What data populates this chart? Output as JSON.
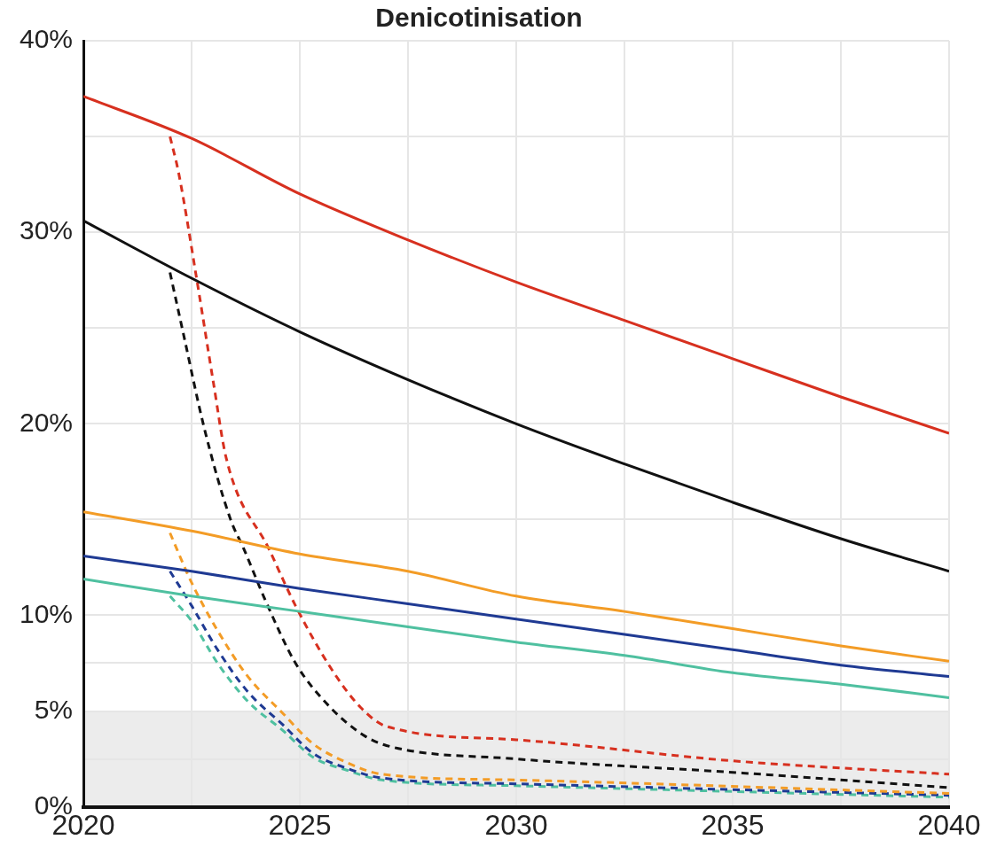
{
  "chart_data": {
    "type": "line",
    "title": "Denicotinisation",
    "xlim": [
      2020,
      2040
    ],
    "xticks": [
      2020,
      {
        "value": 2022.5,
        "label": null
      },
      2025,
      {
        "value": 2027.5,
        "label": null
      },
      2030,
      {
        "value": 2032.5,
        "label": null
      },
      2035,
      {
        "value": 2037.5,
        "label": null
      },
      2040
    ],
    "ylim": [
      0,
      40
    ],
    "yticks": [
      {
        "value": 0,
        "label": "0%"
      },
      {
        "value": 2.5,
        "label": null
      },
      {
        "value": 5,
        "label": "5%"
      },
      {
        "value": 7.5,
        "label": null
      },
      {
        "value": 10,
        "label": "10%"
      },
      {
        "value": 15,
        "label": null
      },
      {
        "value": 20,
        "label": "20%"
      },
      {
        "value": 25,
        "label": null
      },
      {
        "value": 30,
        "label": "30%"
      },
      {
        "value": 35,
        "label": null
      },
      {
        "value": 40,
        "label": "40%"
      }
    ],
    "grid": true,
    "legend": false,
    "marker": "none",
    "bands": [
      {
        "axis": "y",
        "from": 0,
        "to": 5,
        "color": "#ececec"
      }
    ],
    "series": [
      {
        "color": "#d7301f",
        "line_style": "solid",
        "x": [
          2020,
          2022.5,
          2025,
          2027.5,
          2030,
          2032.5,
          2035,
          2037.5,
          2040
        ],
        "values": [
          37.1,
          34.9,
          32.0,
          29.6,
          27.4,
          25.4,
          23.4,
          21.4,
          19.5
        ]
      },
      {
        "color": "#111111",
        "line_style": "solid",
        "x": [
          2020,
          2022.5,
          2025,
          2027.5,
          2030,
          2032.5,
          2035,
          2037.5,
          2040
        ],
        "values": [
          30.6,
          27.6,
          24.8,
          22.3,
          20.0,
          17.9,
          15.9,
          14.0,
          12.3
        ]
      },
      {
        "color": "#f39c26",
        "line_style": "solid",
        "x": [
          2020,
          2022.5,
          2025,
          2027.5,
          2030,
          2032.5,
          2035,
          2037.5,
          2040
        ],
        "values": [
          15.4,
          14.4,
          13.2,
          12.3,
          11.0,
          10.2,
          9.3,
          8.4,
          7.6
        ]
      },
      {
        "color": "#1f3a93",
        "line_style": "solid",
        "x": [
          2020,
          2022.5,
          2025,
          2027.5,
          2030,
          2032.5,
          2035,
          2037.5,
          2040
        ],
        "values": [
          13.1,
          12.3,
          11.4,
          10.6,
          9.8,
          9.0,
          8.2,
          7.4,
          6.8
        ]
      },
      {
        "color": "#4fc0a0",
        "line_style": "solid",
        "x": [
          2020,
          2022.5,
          2025,
          2027.5,
          2030,
          2032.5,
          2035,
          2037.5,
          2040
        ],
        "values": [
          11.9,
          11.0,
          10.2,
          9.4,
          8.6,
          7.9,
          7.0,
          6.4,
          5.7
        ]
      },
      {
        "color": "#d7301f",
        "line_style": "dashed",
        "x": [
          2022,
          2022.2,
          2022.6,
          2023,
          2023.3,
          2024.3,
          2024.9,
          2025.7,
          2026.4,
          2027,
          2030,
          2035,
          2040
        ],
        "values": [
          35.0,
          33.1,
          27.8,
          22.2,
          18.2,
          13.4,
          10.5,
          7.3,
          5.2,
          4.2,
          3.5,
          2.4,
          1.7
        ]
      },
      {
        "color": "#111111",
        "line_style": "dashed",
        "x": [
          2022,
          2022.3,
          2022.8,
          2023.4,
          2023.7,
          2024.2,
          2024.9,
          2025.7,
          2026.5,
          2027,
          2030,
          2035,
          2040
        ],
        "values": [
          27.9,
          24.8,
          19.7,
          15.0,
          13.5,
          10.8,
          7.5,
          5.2,
          3.7,
          3.2,
          2.5,
          1.8,
          1.0
        ]
      },
      {
        "color": "#f39c26",
        "line_style": "dashed",
        "x": [
          2022,
          2022.5,
          2023.1,
          2023.8,
          2024.6,
          2025.3,
          2026.1,
          2026.9,
          2030,
          2040
        ],
        "values": [
          14.3,
          11.7,
          9.2,
          6.8,
          4.9,
          3.3,
          2.3,
          1.7,
          1.4,
          0.7
        ]
      },
      {
        "color": "#1f3a93",
        "line_style": "dashed",
        "x": [
          2022,
          2022.5,
          2023.1,
          2023.8,
          2024.6,
          2025.3,
          2026.1,
          2026.9,
          2030,
          2040
        ],
        "values": [
          12.3,
          10.5,
          8.2,
          6.0,
          4.3,
          2.8,
          2.0,
          1.5,
          1.2,
          0.6
        ]
      },
      {
        "color": "#4fc0a0",
        "line_style": "dashed",
        "x": [
          2022,
          2022.5,
          2023.1,
          2023.8,
          2024.6,
          2025.3,
          2026.1,
          2026.9,
          2030,
          2040
        ],
        "values": [
          11.0,
          9.7,
          7.5,
          5.5,
          4.0,
          2.6,
          1.9,
          1.4,
          1.1,
          0.5
        ]
      }
    ]
  }
}
